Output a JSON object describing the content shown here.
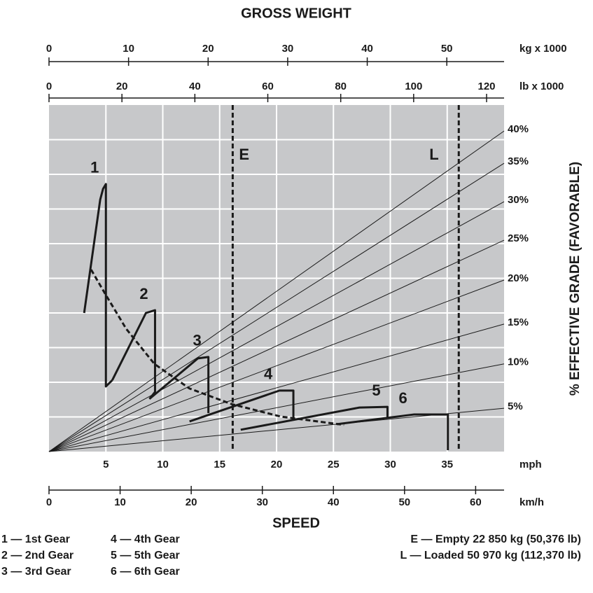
{
  "chart_data": {
    "type": "line",
    "title": "GROSS WEIGHT",
    "xlabel": "SPEED",
    "ylabel": "% EFFECTIVE GRADE  (FAVORABLE)",
    "xlim": [
      0,
      40
    ],
    "ylim": [
      0,
      100
    ],
    "ygrid": [
      10,
      20,
      30,
      40,
      50,
      60,
      70,
      80,
      90
    ],
    "grid": true,
    "background": "#c7c8ca",
    "x_unit": "mph",
    "xticks": [
      5,
      10,
      15,
      20,
      25,
      30,
      35
    ],
    "kmh_axis": {
      "unit": "km/h",
      "xlim": [
        0,
        64
      ],
      "xticks": [
        0,
        10,
        20,
        30,
        40,
        50,
        60
      ]
    },
    "kg_axis": {
      "unit": "kg x 1000",
      "xlim": [
        0,
        57.2
      ],
      "xticks": [
        0,
        10,
        20,
        30,
        40,
        50
      ]
    },
    "lb_axis": {
      "unit": "lb x 1000",
      "xlim": [
        0,
        124.8
      ],
      "xticks": [
        0,
        20,
        40,
        60,
        80,
        100,
        120
      ]
    },
    "series": [
      {
        "name": "1",
        "color": "#1a1a1a",
        "x": [
          3.09,
          4.5,
          4.75,
          5.0,
          5.0,
          5.56
        ],
        "values": [
          40,
          72.7,
          75.8,
          77.2,
          18.8,
          20.6
        ]
      },
      {
        "name": "2",
        "color": "#1a1a1a",
        "x": [
          5.56,
          8.52,
          9.32,
          9.32,
          8.83
        ],
        "values": [
          20.6,
          40,
          40.8,
          17.2,
          15.2
        ]
      },
      {
        "name": "3",
        "color": "#1a1a1a",
        "x": [
          8.83,
          13.09,
          14.01,
          14.01
        ],
        "values": [
          15.2,
          26.9,
          27.3,
          11.1
        ]
      },
      {
        "name": "4",
        "color": "#1a1a1a",
        "x": [
          12.35,
          20.25,
          21.48,
          21.48
        ],
        "values": [
          8.7,
          17.6,
          17.6,
          9.1
        ]
      },
      {
        "name": "5",
        "color": "#1a1a1a",
        "x": [
          16.85,
          27.28,
          29.75,
          29.75
        ],
        "values": [
          6.3,
          12.7,
          12.9,
          9.5
        ]
      },
      {
        "name": "6",
        "color": "#1a1a1a",
        "x": [
          25.31,
          32.1,
          35.06,
          35.06
        ],
        "values": [
          7.9,
          10.7,
          10.7,
          0.4
        ]
      }
    ],
    "dashed_curve": {
      "x": [
        3.7,
        4.94,
        6.79,
        9.26,
        12.35,
        16.05,
        20.37,
        25.93
      ],
      "values": [
        52.5,
        45.5,
        35.4,
        25.3,
        18.2,
        13.7,
        10.1,
        7.7
      ]
    },
    "grade_lines": [
      {
        "name": "40%",
        "x": [
          0,
          40
        ],
        "values": [
          0,
          92.5
        ]
      },
      {
        "name": "35%",
        "x": [
          0,
          40
        ],
        "values": [
          0,
          83.2
        ]
      },
      {
        "name": "30%",
        "x": [
          0,
          40
        ],
        "values": [
          0,
          72.1
        ]
      },
      {
        "name": "25%",
        "x": [
          0,
          40
        ],
        "values": [
          0,
          61
        ]
      },
      {
        "name": "20%",
        "x": [
          0,
          40
        ],
        "values": [
          0,
          49.5
        ]
      },
      {
        "name": "15%",
        "x": [
          0,
          40
        ],
        "values": [
          0,
          36.8
        ]
      },
      {
        "name": "10%",
        "x": [
          0,
          40
        ],
        "values": [
          0,
          25.3
        ]
      },
      {
        "name": "5%",
        "x": [
          0,
          40
        ],
        "values": [
          0,
          12.5
        ]
      }
    ],
    "weight_lines": [
      {
        "label": "E",
        "value": 50.376
      },
      {
        "label": "L",
        "value": 112.37
      }
    ],
    "legend_gears": [
      "1 — 1st Gear",
      "2 — 2nd Gear",
      "3 — 3rd Gear",
      "4 — 4th Gear",
      "5 — 5th Gear",
      "6 — 6th Gear"
    ],
    "legend_weights": [
      "E — Empty 22 850 kg (50,376 lb)",
      "L — Loaded 50 970 kg (112,370 lb)"
    ]
  }
}
